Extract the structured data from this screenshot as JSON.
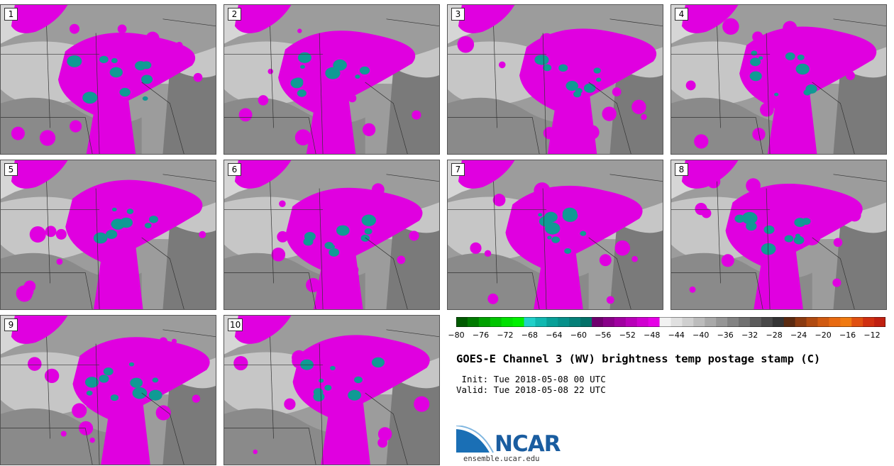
{
  "panels": [
    "1",
    "2",
    "3",
    "4",
    "5",
    "6",
    "7",
    "8",
    "9",
    "10"
  ],
  "colorbar": {
    "ticks": [
      "−80",
      "−76",
      "−72",
      "−68",
      "−64",
      "−60",
      "−56",
      "−52",
      "−48",
      "−44",
      "−40",
      "−36",
      "−32",
      "−28",
      "−24",
      "−20",
      "−16",
      "−12"
    ],
    "colors": [
      "#005a00",
      "#007a00",
      "#00a000",
      "#00c400",
      "#00e000",
      "#00f000",
      "#20d0c8",
      "#10b8b0",
      "#08a098",
      "#06908a",
      "#058078",
      "#047068",
      "#6e006e",
      "#880088",
      "#a000a0",
      "#b800b8",
      "#d000d0",
      "#e600e6",
      "#f2f2f2",
      "#e0e0e0",
      "#cfcfcf",
      "#bcbcbc",
      "#a9a9a9",
      "#969696",
      "#838383",
      "#707070",
      "#5c5c5c",
      "#484848",
      "#343434",
      "#5a2a10",
      "#8a3a10",
      "#b04a10",
      "#d05a10",
      "#e86a10",
      "#f07a10",
      "#e05010",
      "#d03010",
      "#c02010"
    ]
  },
  "title": "GOES-E Channel 3 (WV) brightness temp postage stamp (C)",
  "init": " Init: Tue 2018-05-08 00 UTC",
  "valid": "Valid: Tue 2018-05-08 22 UTC",
  "logo": {
    "name": "NCAR",
    "url": "ensemble.ucar.edu"
  }
}
